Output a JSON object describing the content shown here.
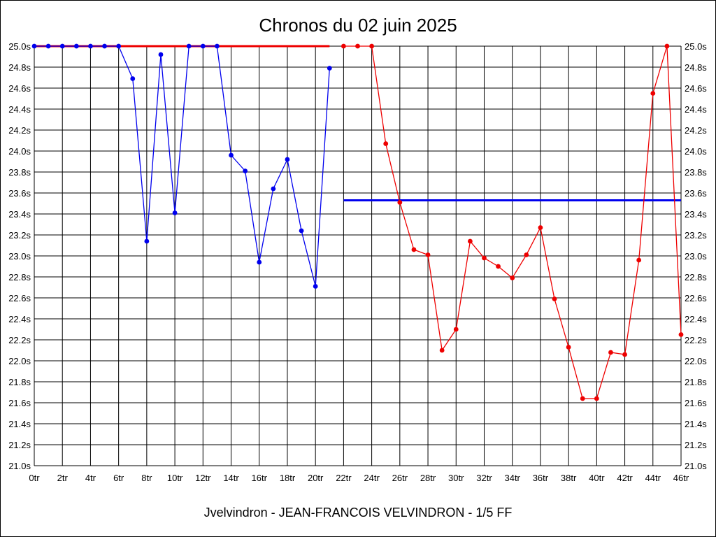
{
  "chart_data": {
    "type": "line",
    "title": "Chronos du 02 juin 2025",
    "footer": "Jvelvindron - JEAN-FRANCOIS VELVINDRON - 1/5 FF",
    "x_unit": "tr",
    "y_unit": "s",
    "xlim": [
      0,
      46
    ],
    "ylim": [
      21.0,
      25.0
    ],
    "x_tick_step": 2,
    "y_tick_step": 0.2,
    "grid": true,
    "y_axis_both_sides": true,
    "series": [
      {
        "color": "#0000ee",
        "marker": "dot",
        "points": [
          [
            0,
            25.0
          ],
          [
            1,
            25.0
          ],
          [
            2,
            25.0
          ],
          [
            3,
            25.0
          ],
          [
            4,
            25.0
          ],
          [
            5,
            25.0
          ],
          [
            6,
            25.0
          ],
          [
            7,
            24.69
          ],
          [
            8,
            23.14
          ],
          [
            9,
            24.92
          ],
          [
            10,
            23.41
          ],
          [
            11,
            25.0
          ],
          [
            12,
            25.0
          ],
          [
            13,
            25.0
          ],
          [
            14,
            23.96
          ],
          [
            15,
            23.81
          ],
          [
            16,
            22.94
          ],
          [
            17,
            23.64
          ],
          [
            18,
            23.92
          ],
          [
            19,
            23.24
          ],
          [
            20,
            22.71
          ],
          [
            21,
            24.79
          ]
        ]
      },
      {
        "color": "#ee0000",
        "marker": "dot",
        "points": [
          [
            22,
            25.0
          ],
          [
            23,
            25.0
          ],
          [
            24,
            25.0
          ],
          [
            25,
            24.07
          ],
          [
            26,
            23.51
          ],
          [
            27,
            23.06
          ],
          [
            28,
            23.01
          ],
          [
            29,
            22.1
          ],
          [
            30,
            22.3
          ],
          [
            31,
            23.14
          ],
          [
            32,
            22.98
          ],
          [
            33,
            22.9
          ],
          [
            34,
            22.79
          ],
          [
            35,
            23.01
          ],
          [
            36,
            23.27
          ],
          [
            37,
            22.59
          ],
          [
            38,
            22.13
          ],
          [
            39,
            21.64
          ],
          [
            40,
            21.64
          ],
          [
            41,
            22.08
          ],
          [
            42,
            22.06
          ],
          [
            43,
            22.96
          ],
          [
            44,
            24.55
          ],
          [
            45,
            25.0
          ],
          [
            46,
            22.25
          ]
        ]
      }
    ],
    "reference_lines": [
      {
        "color": "#ee0000",
        "y": 25.0,
        "x_range": [
          0,
          21
        ]
      },
      {
        "color": "#0000ee",
        "y": 23.53,
        "x_range": [
          22,
          46
        ]
      }
    ]
  }
}
